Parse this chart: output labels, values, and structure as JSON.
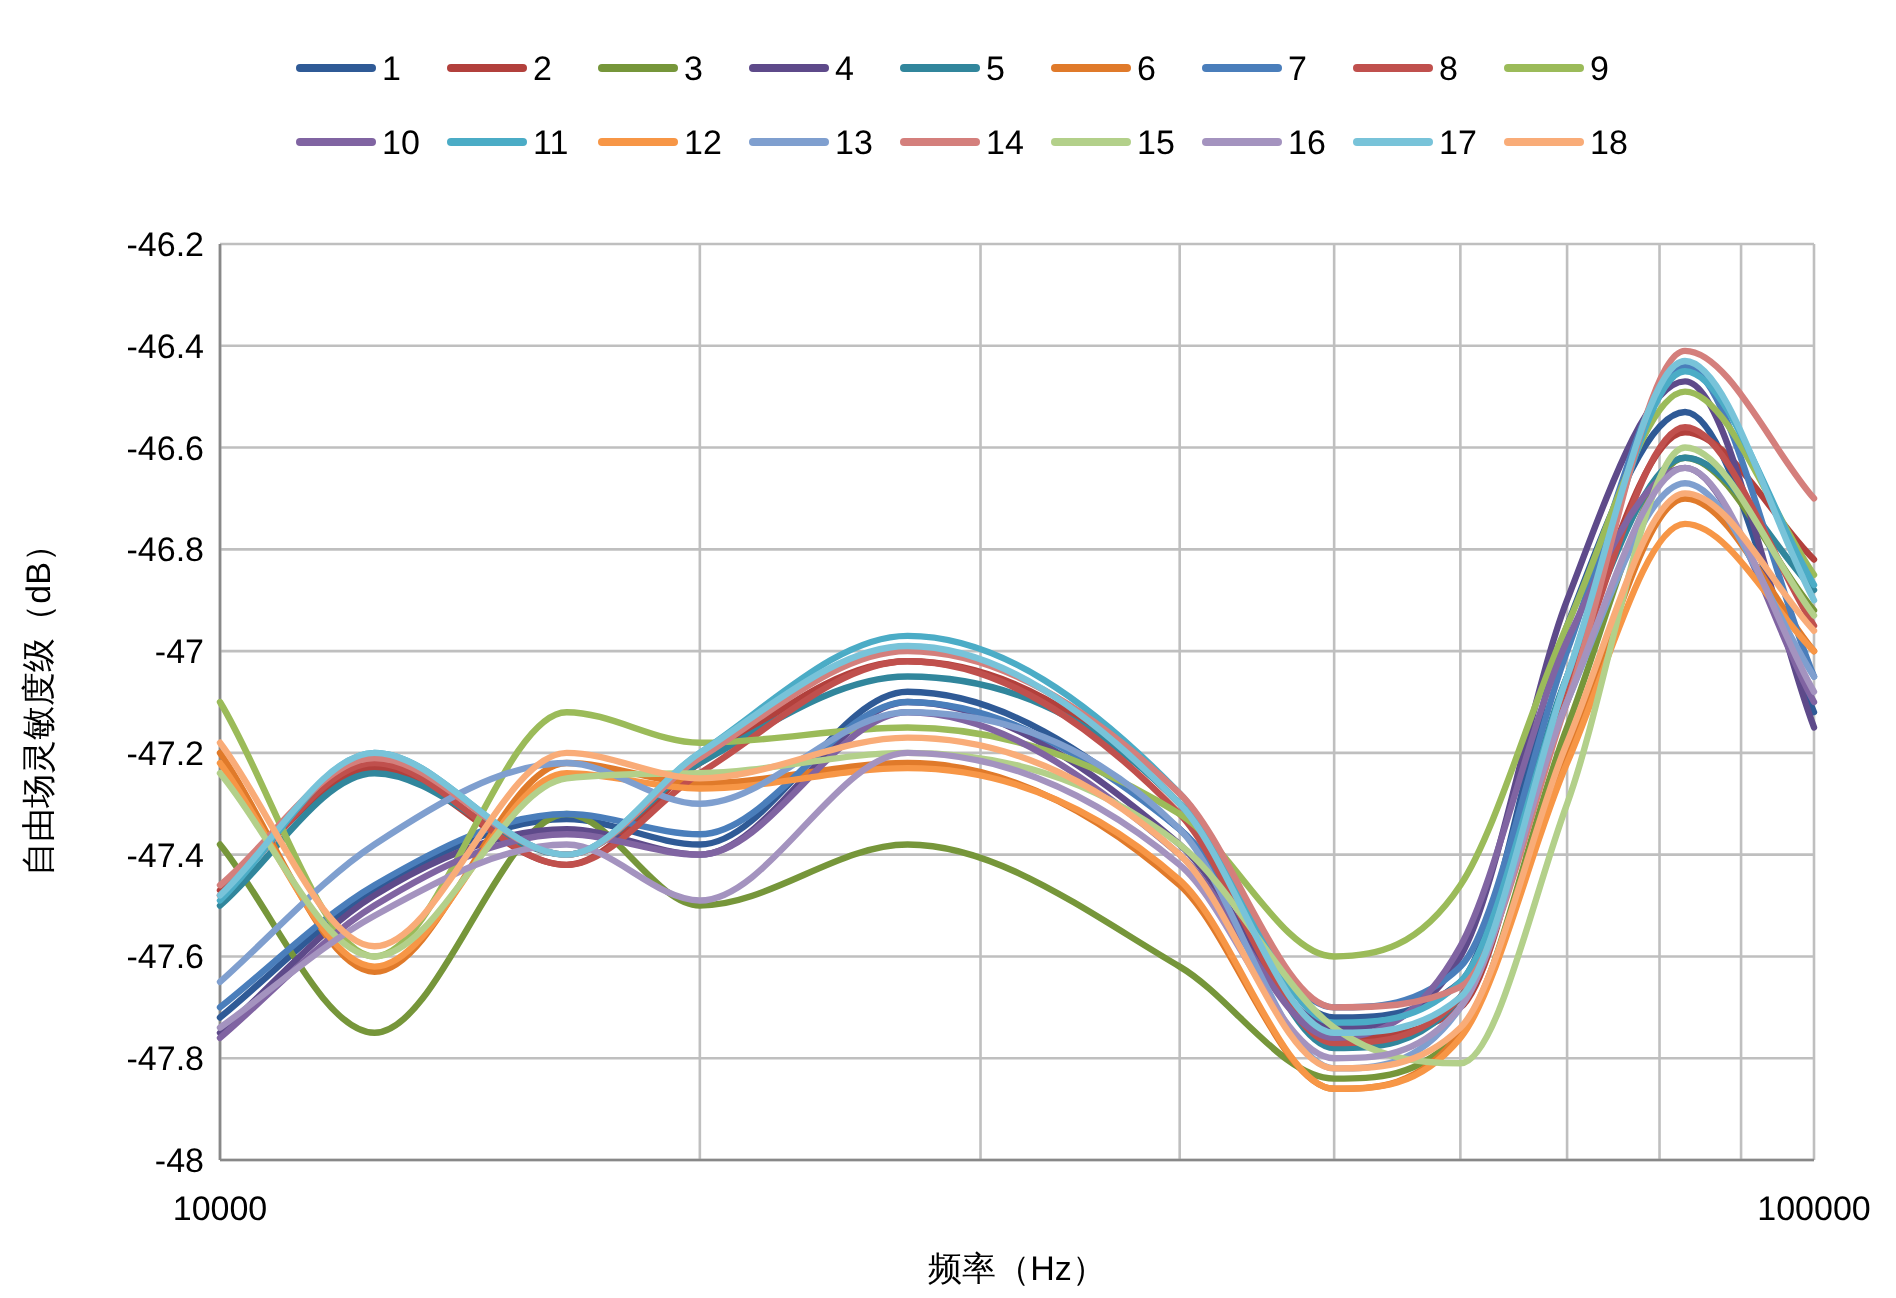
{
  "chart_data": {
    "type": "line",
    "xlabel": "频率（Hz）",
    "ylabel": "自由场灵敏度级（dB）",
    "log": "x",
    "x": [
      10000,
      12500,
      16500,
      20000,
      27000,
      40000,
      50000,
      60000,
      70000,
      83000,
      100000
    ],
    "xlim": [
      10000,
      100000
    ],
    "xticks": [
      10000,
      {
        "value": 20000,
        "label": null
      },
      {
        "value": 30000,
        "label": null
      },
      {
        "value": 40000,
        "label": null
      },
      {
        "value": 50000,
        "label": null
      },
      {
        "value": 60000,
        "label": null
      },
      {
        "value": 70000,
        "label": null
      },
      {
        "value": 80000,
        "label": null
      },
      {
        "value": 90000,
        "label": null
      },
      100000
    ],
    "ylim": [
      -48,
      -46.2
    ],
    "yticks": [
      -48,
      -47.8,
      -47.6,
      -47.4,
      -47.2,
      -47,
      -46.8,
      -46.6,
      -46.4,
      -46.2
    ],
    "grid": true,
    "legend": "top",
    "marker": "none",
    "line_style": "solid",
    "series": [
      {
        "name": "1",
        "color": "#2f5a96",
        "values": [
          -47.72,
          -47.47,
          -47.33,
          -47.38,
          -47.08,
          -47.35,
          -47.72,
          -47.65,
          -46.95,
          -46.53,
          -47.12
        ]
      },
      {
        "name": "2",
        "color": "#b2403c",
        "values": [
          -47.47,
          -47.23,
          -47.42,
          -47.22,
          -47.02,
          -47.3,
          -47.76,
          -47.7,
          -47.05,
          -46.57,
          -46.82
        ]
      },
      {
        "name": "3",
        "color": "#76963a",
        "values": [
          -47.38,
          -47.75,
          -47.32,
          -47.5,
          -47.38,
          -47.62,
          -47.84,
          -47.75,
          -47.15,
          -46.62,
          -46.92
        ]
      },
      {
        "name": "4",
        "color": "#5e4a8a",
        "values": [
          -47.75,
          -47.48,
          -47.35,
          -47.4,
          -47.1,
          -47.38,
          -47.74,
          -47.6,
          -46.9,
          -46.47,
          -47.15
        ]
      },
      {
        "name": "5",
        "color": "#31869c",
        "values": [
          -47.5,
          -47.24,
          -47.4,
          -47.22,
          -47.05,
          -47.3,
          -47.78,
          -47.68,
          -47.05,
          -46.62,
          -46.88
        ]
      },
      {
        "name": "6",
        "color": "#e07a2a",
        "values": [
          -47.2,
          -47.63,
          -47.22,
          -47.26,
          -47.22,
          -47.46,
          -47.86,
          -47.75,
          -47.2,
          -46.7,
          -47.0
        ]
      },
      {
        "name": "7",
        "color": "#4a7ebb",
        "values": [
          -47.7,
          -47.46,
          -47.32,
          -47.36,
          -47.1,
          -47.35,
          -47.7,
          -47.62,
          -47.0,
          -46.44,
          -47.05
        ]
      },
      {
        "name": "8",
        "color": "#c0504d",
        "values": [
          -47.48,
          -47.22,
          -47.42,
          -47.24,
          -47.02,
          -47.32,
          -47.77,
          -47.68,
          -47.08,
          -46.56,
          -46.95
        ]
      },
      {
        "name": "9",
        "color": "#9bbb59",
        "values": [
          -47.1,
          -47.6,
          -47.12,
          -47.18,
          -47.15,
          -47.32,
          -47.6,
          -47.46,
          -46.95,
          -46.49,
          -46.85
        ]
      },
      {
        "name": "10",
        "color": "#8064a2",
        "values": [
          -47.76,
          -47.5,
          -47.36,
          -47.4,
          -47.12,
          -47.4,
          -47.76,
          -47.58,
          -46.98,
          -46.64,
          -47.1
        ]
      },
      {
        "name": "11",
        "color": "#4bacc6",
        "values": [
          -47.49,
          -47.2,
          -47.4,
          -47.2,
          -46.97,
          -47.28,
          -47.73,
          -47.65,
          -47.05,
          -46.45,
          -46.87
        ]
      },
      {
        "name": "12",
        "color": "#f79646",
        "values": [
          -47.22,
          -47.62,
          -47.24,
          -47.27,
          -47.23,
          -47.45,
          -47.86,
          -47.76,
          -47.22,
          -46.75,
          -47.0
        ]
      },
      {
        "name": "13",
        "color": "#7f9fcf",
        "values": [
          -47.65,
          -47.38,
          -47.22,
          -47.3,
          -47.12,
          -47.35,
          -47.82,
          -47.7,
          -47.1,
          -46.67,
          -47.05
        ]
      },
      {
        "name": "14",
        "color": "#d47f7c",
        "values": [
          -47.46,
          -47.21,
          -47.4,
          -47.21,
          -47.0,
          -47.28,
          -47.7,
          -47.66,
          -47.1,
          -46.41,
          -46.7
        ]
      },
      {
        "name": "15",
        "color": "#b3d08a",
        "values": [
          -47.24,
          -47.6,
          -47.25,
          -47.24,
          -47.2,
          -47.38,
          -47.74,
          -47.81,
          -47.3,
          -46.6,
          -46.93
        ]
      },
      {
        "name": "16",
        "color": "#a493bf",
        "values": [
          -47.74,
          -47.52,
          -47.38,
          -47.49,
          -47.2,
          -47.42,
          -47.8,
          -47.7,
          -47.1,
          -46.64,
          -47.08
        ]
      },
      {
        "name": "17",
        "color": "#78c3d9",
        "values": [
          -47.48,
          -47.2,
          -47.4,
          -47.2,
          -46.99,
          -47.3,
          -47.75,
          -47.68,
          -47.05,
          -46.43,
          -46.9
        ]
      },
      {
        "name": "18",
        "color": "#f9ac78",
        "values": [
          -47.18,
          -47.58,
          -47.2,
          -47.25,
          -47.17,
          -47.4,
          -47.82,
          -47.74,
          -47.18,
          -46.69,
          -46.96
        ]
      }
    ]
  }
}
